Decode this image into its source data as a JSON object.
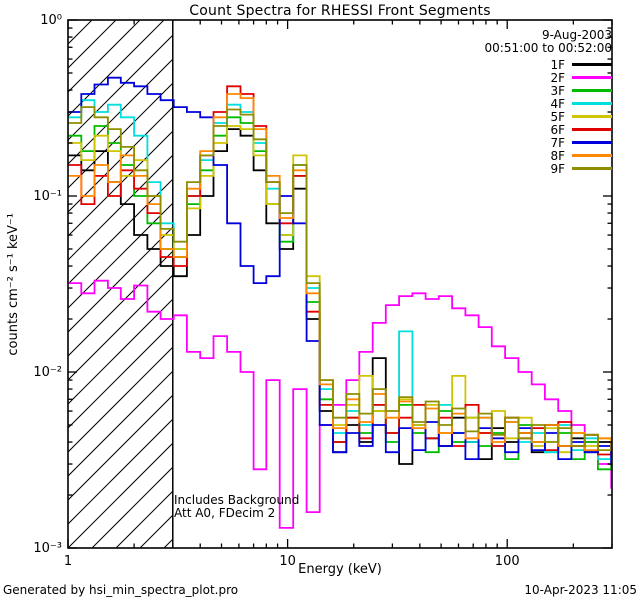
{
  "header": {
    "title": "Count Spectra for RHESSI Front Segments",
    "date": "9-Aug-2003",
    "time_range": "00:51:00 to 00:52:00"
  },
  "plot_annotations": {
    "line1": "Includes Background",
    "line2": "Att A0, FDecim 2"
  },
  "footer": {
    "left": "Generated by hsi_min_spectra_plot.pro",
    "right": "10-Apr-2023 11:05"
  },
  "chart_data": {
    "type": "line",
    "subtype": "step-histogram",
    "title": "Count Spectra for RHESSI Front Segments",
    "xlabel": "Energy (keV)",
    "ylabel": "counts cm⁻² s⁻¹ keV⁻¹",
    "xscale": "log",
    "yscale": "log",
    "xlim": [
      1,
      300
    ],
    "ylim": [
      0.001,
      1
    ],
    "grid": false,
    "legend_position": "top-right",
    "x_ticks": [
      {
        "v": 1,
        "label": "1"
      },
      {
        "v": 10,
        "label": "10"
      },
      {
        "v": 100,
        "label": "100"
      }
    ],
    "y_ticks": [
      {
        "v": 0.001,
        "label": "10⁻³"
      },
      {
        "v": 0.01,
        "label": "10⁻²"
      },
      {
        "v": 0.1,
        "label": "10⁻¹"
      },
      {
        "v": 1,
        "label": "10⁰"
      }
    ],
    "hatch_region": {
      "x_start": 1,
      "x_end": 3
    },
    "x": [
      1.0,
      1.15,
      1.32,
      1.52,
      1.74,
      2.0,
      2.3,
      2.64,
      3.03,
      3.48,
      4.0,
      4.6,
      5.3,
      6.1,
      7.0,
      8.0,
      9.2,
      10.6,
      12.2,
      14.0,
      16.1,
      18.5,
      21.2,
      24.4,
      28.0,
      32.2,
      37.0,
      42.5,
      48.8,
      56.1,
      64.5,
      74.1,
      85.1,
      97.8,
      112.4,
      129.2,
      148.4,
      170.6,
      196.0,
      225.3,
      258.9,
      297.6
    ],
    "series": [
      {
        "name": "1F",
        "color": "#000000",
        "values": [
          0.17,
          0.14,
          0.18,
          0.12,
          0.09,
          0.06,
          0.05,
          0.04,
          0.035,
          0.06,
          0.1,
          0.18,
          0.24,
          0.22,
          0.14,
          0.07,
          0.05,
          0.11,
          0.02,
          0.006,
          0.0035,
          0.005,
          0.004,
          0.012,
          0.0045,
          0.003,
          0.005,
          0.0042,
          0.0038,
          0.0055,
          0.004,
          0.0032,
          0.0048,
          0.004,
          0.0045,
          0.0035,
          0.005,
          0.0038,
          0.0042,
          0.0035,
          0.004,
          0.0036
        ]
      },
      {
        "name": "2F",
        "color": "#ff00ff",
        "values": [
          0.032,
          0.028,
          0.033,
          0.03,
          0.026,
          0.031,
          0.022,
          0.02,
          0.021,
          0.013,
          0.012,
          0.016,
          0.013,
          0.01,
          0.0028,
          0.009,
          0.0013,
          0.008,
          0.0016,
          0.005,
          0.0065,
          0.009,
          0.013,
          0.019,
          0.024,
          0.027,
          0.028,
          0.026,
          0.027,
          0.023,
          0.021,
          0.018,
          0.014,
          0.012,
          0.01,
          0.0085,
          0.007,
          0.006,
          0.005,
          0.004,
          0.003,
          0.0022
        ]
      },
      {
        "name": "3F",
        "color": "#00bb00",
        "values": [
          0.22,
          0.18,
          0.25,
          0.2,
          0.15,
          0.1,
          0.07,
          0.05,
          0.045,
          0.09,
          0.14,
          0.22,
          0.28,
          0.26,
          0.18,
          0.09,
          0.055,
          0.13,
          0.025,
          0.007,
          0.004,
          0.0055,
          0.0045,
          0.006,
          0.004,
          0.0065,
          0.0045,
          0.0035,
          0.006,
          0.004,
          0.0055,
          0.0038,
          0.0045,
          0.0032,
          0.005,
          0.004,
          0.0035,
          0.0045,
          0.0032,
          0.004,
          0.0028,
          0.0035
        ]
      },
      {
        "name": "4F",
        "color": "#00dede",
        "values": [
          0.28,
          0.35,
          0.3,
          0.33,
          0.28,
          0.22,
          0.12,
          0.07,
          0.05,
          0.1,
          0.16,
          0.26,
          0.33,
          0.3,
          0.2,
          0.11,
          0.06,
          0.15,
          0.03,
          0.008,
          0.0045,
          0.006,
          0.005,
          0.0065,
          0.0045,
          0.017,
          0.005,
          0.0042,
          0.0065,
          0.0045,
          0.004,
          0.0055,
          0.0038,
          0.0052,
          0.004,
          0.0045,
          0.0035,
          0.005,
          0.0036,
          0.0042,
          0.0032,
          0.0038
        ]
      },
      {
        "name": "5F",
        "color": "#d1c400",
        "values": [
          0.2,
          0.16,
          0.22,
          0.18,
          0.13,
          0.16,
          0.1,
          0.06,
          0.05,
          0.085,
          0.13,
          0.2,
          0.25,
          0.24,
          0.17,
          0.09,
          0.06,
          0.17,
          0.035,
          0.009,
          0.005,
          0.0065,
          0.0095,
          0.006,
          0.0045,
          0.007,
          0.005,
          0.0065,
          0.0045,
          0.0095,
          0.0055,
          0.0045,
          0.006,
          0.0042,
          0.0055,
          0.0038,
          0.0048,
          0.0035,
          0.0045,
          0.0038,
          0.0042,
          0.0035
        ]
      },
      {
        "name": "6F",
        "color": "#e00000",
        "values": [
          0.15,
          0.09,
          0.13,
          0.1,
          0.14,
          0.11,
          0.08,
          0.045,
          0.04,
          0.1,
          0.17,
          0.3,
          0.42,
          0.38,
          0.25,
          0.12,
          0.07,
          0.13,
          0.022,
          0.0065,
          0.004,
          0.0055,
          0.0042,
          0.0065,
          0.0045,
          0.0055,
          0.0065,
          0.0042,
          0.0055,
          0.0038,
          0.0065,
          0.0045,
          0.0038,
          0.0055,
          0.0042,
          0.0048,
          0.0036,
          0.0052,
          0.0038,
          0.0044,
          0.0034,
          0.004
        ]
      },
      {
        "name": "7F",
        "color": "#0000dd",
        "values": [
          0.3,
          0.38,
          0.43,
          0.47,
          0.44,
          0.42,
          0.38,
          0.35,
          0.32,
          0.3,
          0.28,
          0.15,
          0.07,
          0.04,
          0.032,
          0.035,
          0.1,
          0.07,
          0.015,
          0.005,
          0.0035,
          0.0045,
          0.0038,
          0.005,
          0.0035,
          0.0048,
          0.0036,
          0.0052,
          0.0038,
          0.0045,
          0.0032,
          0.0048,
          0.0042,
          0.0035,
          0.0048,
          0.0036,
          0.0045,
          0.0032,
          0.004,
          0.0035,
          0.0038,
          0.003
        ]
      },
      {
        "name": "8F",
        "color": "#ff8800",
        "values": [
          0.13,
          0.1,
          0.15,
          0.12,
          0.17,
          0.13,
          0.09,
          0.05,
          0.045,
          0.11,
          0.18,
          0.28,
          0.38,
          0.36,
          0.24,
          0.13,
          0.075,
          0.14,
          0.028,
          0.0085,
          0.0048,
          0.007,
          0.0052,
          0.0075,
          0.0055,
          0.0068,
          0.0048,
          0.0062,
          0.0045,
          0.0058,
          0.0042,
          0.0055,
          0.004,
          0.0052,
          0.0045,
          0.004,
          0.005,
          0.0038,
          0.0045,
          0.0036,
          0.0042,
          0.0038
        ]
      },
      {
        "name": "9F",
        "color": "#8e8e00",
        "values": [
          0.26,
          0.32,
          0.28,
          0.24,
          0.19,
          0.14,
          0.1,
          0.065,
          0.055,
          0.12,
          0.17,
          0.25,
          0.31,
          0.29,
          0.21,
          0.12,
          0.08,
          0.15,
          0.032,
          0.009,
          0.0055,
          0.0075,
          0.0058,
          0.008,
          0.006,
          0.0072,
          0.0052,
          0.0068,
          0.005,
          0.0062,
          0.0046,
          0.0058,
          0.0044,
          0.0055,
          0.0042,
          0.005,
          0.004,
          0.0048,
          0.0038,
          0.0044,
          0.0036,
          0.004
        ]
      }
    ]
  }
}
